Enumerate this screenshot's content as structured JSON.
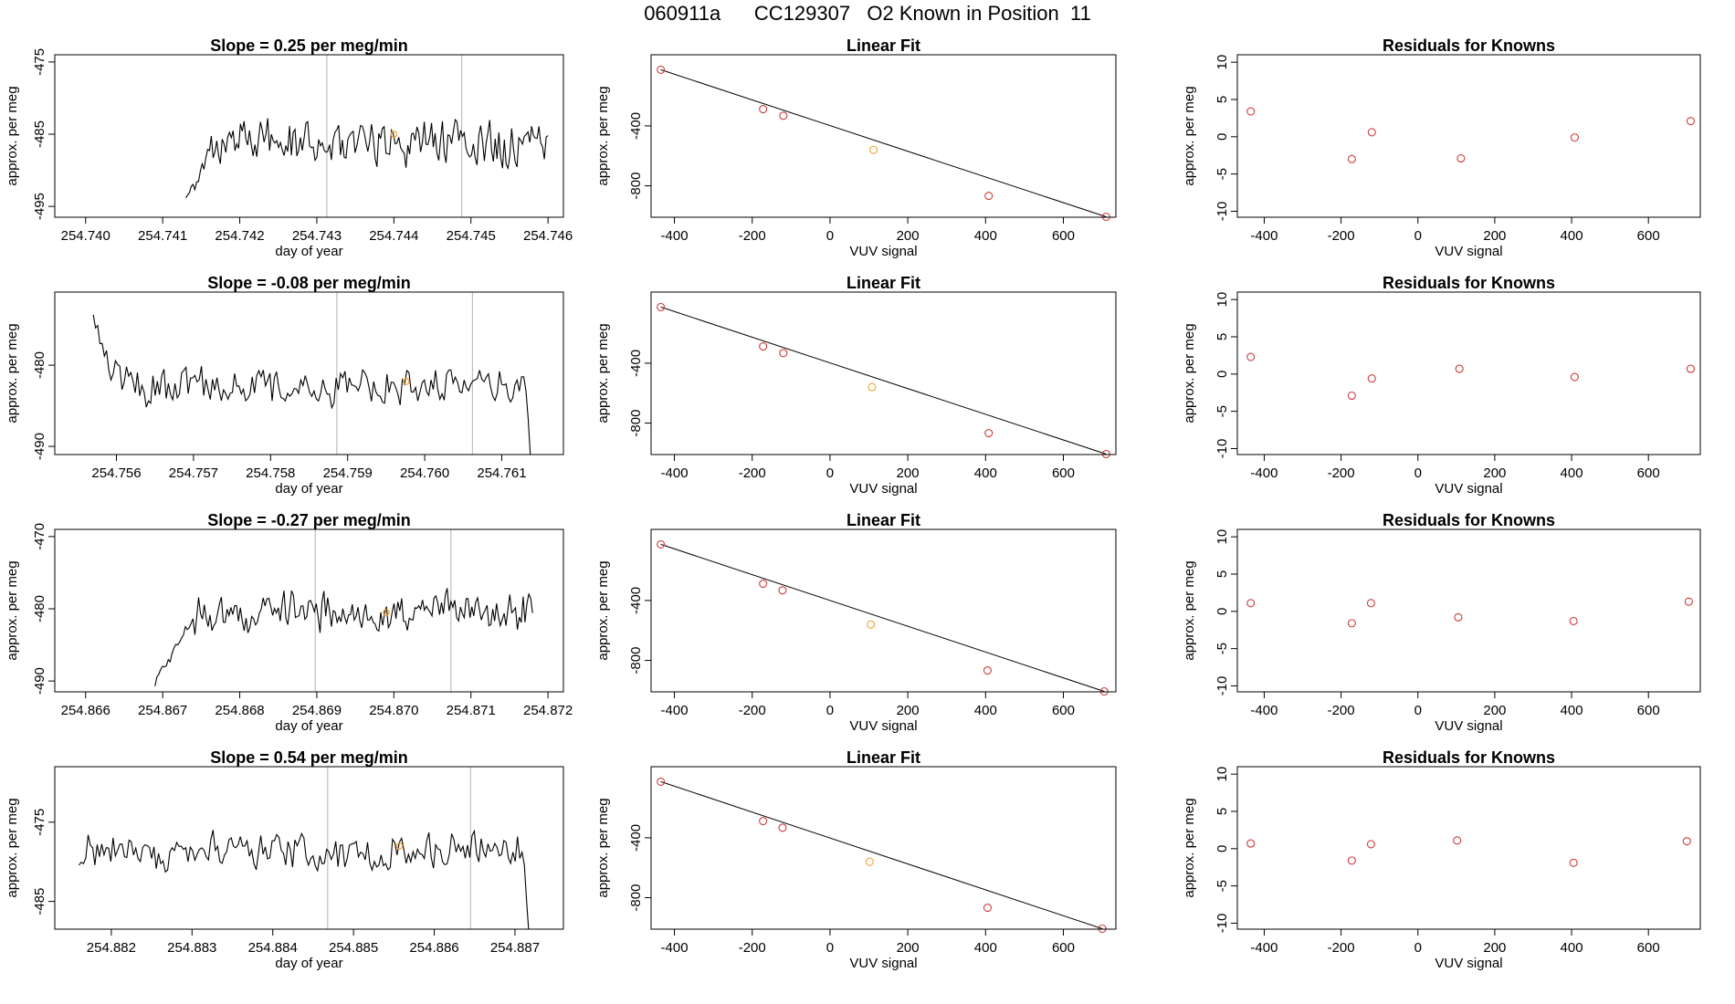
{
  "figure_title": "060911a      CC129307   O2 Known in Position  11",
  "colors": {
    "line": "#000000",
    "known_point": "#cd3b3b",
    "highlight_point": "#f2a23a",
    "grid_vline": "#bfbfbf"
  },
  "chart_data": [
    {
      "row": 1,
      "timeseries": {
        "type": "line",
        "title": "Slope =  0.25  per meg/min",
        "xlabel": "day of year",
        "ylabel": "approx. per meg",
        "xlim": [
          254.7396,
          254.7462
        ],
        "ylim": [
          -496.5,
          -474
        ],
        "xticks": [
          "254.740",
          "254.741",
          "254.742",
          "254.743",
          "254.744",
          "254.745",
          "254.746"
        ],
        "xtick_values": [
          254.74,
          254.741,
          254.742,
          254.743,
          254.744,
          254.745,
          254.746
        ],
        "yticks": [
          "-475",
          "-485",
          "-495"
        ],
        "ytick_values": [
          -475,
          -485,
          -495
        ],
        "start_x": 254.7413,
        "end_x": 254.746,
        "base": -486,
        "amp": 4,
        "noise": 2.2,
        "seed": 11,
        "ramp_start": -494,
        "ramp_len": 0.0004,
        "drop_start": null,
        "vlines": [
          254.74313,
          254.74488
        ],
        "highlight": {
          "x": 254.744,
          "y": -485
        }
      },
      "fit": {
        "type": "scatter",
        "title": "Linear Fit",
        "xlabel": "VUV signal",
        "ylabel": "approx. per meg",
        "xlim": [
          -460,
          735
        ],
        "ylim": [
          -1010,
          75
        ],
        "xticks": [
          "-400",
          "-200",
          "0",
          "200",
          "400",
          "600"
        ],
        "xtick_values": [
          -400,
          -200,
          0,
          200,
          400,
          600
        ],
        "yticks": [
          "-400",
          "-800"
        ],
        "ytick_values": [
          -400,
          -800
        ],
        "x": [
          -435,
          -172,
          -120,
          112,
          408,
          710
        ],
        "y": [
          -25,
          -288,
          -332,
          -560,
          -867,
          -1007
        ],
        "highlight_index": 3
      },
      "residuals": {
        "type": "scatter",
        "title": "Residuals for Knowns",
        "xlabel": "VUV signal",
        "ylabel": "approx. per meg",
        "xlim": [
          -470,
          735
        ],
        "ylim": [
          -10.8,
          11
        ],
        "xticks": [
          "-400",
          "-200",
          "0",
          "200",
          "400",
          "600"
        ],
        "xtick_values": [
          -400,
          -200,
          0,
          200,
          400,
          600
        ],
        "yticks": [
          "10",
          "5",
          "0",
          "-5",
          "-10"
        ],
        "ytick_values": [
          10,
          5,
          0,
          -5,
          -10
        ],
        "x": [
          -435,
          -172,
          -120,
          112,
          408,
          710
        ],
        "y": [
          3.4,
          -3.0,
          0.6,
          -2.9,
          -0.1,
          2.1
        ]
      }
    },
    {
      "row": 2,
      "timeseries": {
        "type": "line",
        "title": "Slope =  -0.08  per meg/min",
        "xlabel": "day of year",
        "ylabel": "approx. per meg",
        "xlim": [
          254.7552,
          254.7618
        ],
        "ylim": [
          -491,
          -471
        ],
        "xticks": [
          "254.756",
          "254.757",
          "254.758",
          "254.759",
          "254.760",
          "254.761"
        ],
        "xtick_values": [
          254.756,
          254.757,
          254.758,
          254.759,
          254.76,
          254.761
        ],
        "yticks": [
          "-480",
          "-490"
        ],
        "ytick_values": [
          -480,
          -490
        ],
        "start_x": 254.7557,
        "end_x": 254.7614,
        "base": -482.5,
        "amp": 3,
        "noise": 2.0,
        "seed": 23,
        "ramp_start": -474,
        "ramp_len": 0.0003,
        "drop_start": 254.7613,
        "vlines": [
          254.75886,
          254.76062
        ],
        "highlight": {
          "x": 254.75976,
          "y": -482
        }
      },
      "fit": {
        "type": "scatter",
        "title": "Linear Fit",
        "xlabel": "VUV signal",
        "ylabel": "approx. per meg",
        "xlim": [
          -460,
          735
        ],
        "ylim": [
          -1010,
          75
        ],
        "xticks": [
          "-400",
          "-200",
          "0",
          "200",
          "400",
          "600"
        ],
        "xtick_values": [
          -400,
          -200,
          0,
          200,
          400,
          600
        ],
        "yticks": [
          "-400",
          "-800"
        ],
        "ytick_values": [
          -400,
          -800
        ],
        "x": [
          -435,
          -172,
          -120,
          108,
          408,
          710
        ],
        "y": [
          -25,
          -288,
          -332,
          -560,
          -867,
          -1007
        ],
        "highlight_index": 3
      },
      "residuals": {
        "type": "scatter",
        "title": "Residuals for Knowns",
        "xlabel": "VUV signal",
        "ylabel": "approx. per meg",
        "xlim": [
          -470,
          735
        ],
        "ylim": [
          -10.8,
          11
        ],
        "xticks": [
          "-400",
          "-200",
          "0",
          "200",
          "400",
          "600"
        ],
        "xtick_values": [
          -400,
          -200,
          0,
          200,
          400,
          600
        ],
        "yticks": [
          "10",
          "5",
          "0",
          "-5",
          "-10"
        ],
        "ytick_values": [
          10,
          5,
          0,
          -5,
          -10
        ],
        "x": [
          -435,
          -172,
          -120,
          108,
          408,
          710
        ],
        "y": [
          2.3,
          -2.9,
          -0.6,
          0.7,
          -0.4,
          0.7
        ]
      }
    },
    {
      "row": 3,
      "timeseries": {
        "type": "line",
        "title": "Slope =  -0.27  per meg/min",
        "xlabel": "day of year",
        "ylabel": "approx. per meg",
        "xlim": [
          254.8656,
          254.8722
        ],
        "ylim": [
          -491.5,
          -469
        ],
        "xticks": [
          "254.866",
          "254.867",
          "254.868",
          "254.869",
          "254.870",
          "254.871",
          "254.872"
        ],
        "xtick_values": [
          254.866,
          254.867,
          254.868,
          254.869,
          254.87,
          254.871,
          254.872
        ],
        "yticks": [
          "-470",
          "-480",
          "-490"
        ],
        "ytick_values": [
          -470,
          -480,
          -490
        ],
        "start_x": 254.8669,
        "end_x": 254.8718,
        "base": -480.5,
        "amp": 3.5,
        "noise": 2.0,
        "seed": 37,
        "ramp_start": -490,
        "ramp_len": 0.0006,
        "drop_start": null,
        "vlines": [
          254.86898,
          254.87074
        ],
        "highlight": {
          "x": 254.8699,
          "y": -480.5
        }
      },
      "fit": {
        "type": "scatter",
        "title": "Linear Fit",
        "xlabel": "VUV signal",
        "ylabel": "approx. per meg",
        "xlim": [
          -460,
          735
        ],
        "ylim": [
          -1010,
          75
        ],
        "xticks": [
          "-400",
          "-200",
          "0",
          "200",
          "400",
          "600"
        ],
        "xtick_values": [
          -400,
          -200,
          0,
          200,
          400,
          600
        ],
        "yticks": [
          "-400",
          "-800"
        ],
        "ytick_values": [
          -400,
          -800
        ],
        "x": [
          -435,
          -172,
          -122,
          105,
          405,
          705
        ],
        "y": [
          -25,
          -288,
          -332,
          -560,
          -867,
          -1007
        ],
        "highlight_index": 3
      },
      "residuals": {
        "type": "scatter",
        "title": "Residuals for Knowns",
        "xlabel": "VUV signal",
        "ylabel": "approx. per meg",
        "xlim": [
          -470,
          735
        ],
        "ylim": [
          -10.8,
          11
        ],
        "xticks": [
          "-400",
          "-200",
          "0",
          "200",
          "400",
          "600"
        ],
        "xtick_values": [
          -400,
          -200,
          0,
          200,
          400,
          600
        ],
        "yticks": [
          "10",
          "5",
          "0",
          "-5",
          "-10"
        ],
        "ytick_values": [
          10,
          5,
          0,
          -5,
          -10
        ],
        "x": [
          -435,
          -172,
          -122,
          105,
          405,
          705
        ],
        "y": [
          1.1,
          -1.6,
          1.1,
          -0.8,
          -1.3,
          1.3
        ]
      }
    },
    {
      "row": 4,
      "timeseries": {
        "type": "line",
        "title": "Slope =  0.54  per meg/min",
        "xlabel": "day of year",
        "ylabel": "approx. per meg",
        "xlim": [
          254.8813,
          254.8876
        ],
        "ylim": [
          -488.5,
          -468
        ],
        "xticks": [
          "254.882",
          "254.883",
          "254.884",
          "254.885",
          "254.886",
          "254.887"
        ],
        "xtick_values": [
          254.882,
          254.883,
          254.884,
          254.885,
          254.886,
          254.887
        ],
        "yticks": [
          "-475",
          "-485"
        ],
        "ytick_values": [
          -475,
          -485
        ],
        "start_x": 254.8816,
        "end_x": 254.8872,
        "base": -478.5,
        "amp": 3,
        "noise": 2.0,
        "seed": 51,
        "ramp_start": null,
        "ramp_len": 0,
        "drop_start": 254.8871,
        "vlines": [
          254.88468,
          254.88645
        ],
        "highlight": {
          "x": 254.88557,
          "y": -478
        }
      },
      "fit": {
        "type": "scatter",
        "title": "Linear Fit",
        "xlabel": "VUV signal",
        "ylabel": "approx. per meg",
        "xlim": [
          -460,
          735
        ],
        "ylim": [
          -1010,
          75
        ],
        "xticks": [
          "-400",
          "-200",
          "0",
          "200",
          "400",
          "600"
        ],
        "xtick_values": [
          -400,
          -200,
          0,
          200,
          400,
          600
        ],
        "yticks": [
          "-400",
          "-800"
        ],
        "ytick_values": [
          -400,
          -800
        ],
        "x": [
          -435,
          -172,
          -122,
          102,
          405,
          700
        ],
        "y": [
          -25,
          -288,
          -332,
          -560,
          -867,
          -1007
        ],
        "highlight_index": 3
      },
      "residuals": {
        "type": "scatter",
        "title": "Residuals for Knowns",
        "xlabel": "VUV signal",
        "ylabel": "approx. per meg",
        "xlim": [
          -470,
          735
        ],
        "ylim": [
          -10.8,
          11
        ],
        "xticks": [
          "-400",
          "-200",
          "0",
          "200",
          "400",
          "600"
        ],
        "xtick_values": [
          -400,
          -200,
          0,
          200,
          400,
          600
        ],
        "yticks": [
          "10",
          "5",
          "0",
          "-5",
          "-10"
        ],
        "ytick_values": [
          10,
          5,
          0,
          -5,
          -10
        ],
        "x": [
          -435,
          -172,
          -122,
          102,
          405,
          700
        ],
        "y": [
          0.7,
          -1.6,
          0.6,
          1.1,
          -1.9,
          1.0
        ]
      }
    }
  ]
}
